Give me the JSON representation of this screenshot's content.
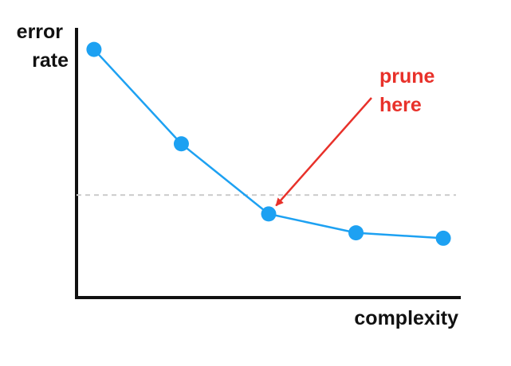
{
  "chart_data": {
    "type": "line",
    "title": "",
    "xlabel": "complexity",
    "ylabel_lines": [
      "error",
      "rate"
    ],
    "x": [
      1,
      2,
      3,
      4,
      5
    ],
    "series": [
      {
        "values": [
          0.92,
          0.57,
          0.31,
          0.24,
          0.22
        ]
      }
    ],
    "xlim": [
      0.8,
      5.2
    ],
    "ylim": [
      0,
      1
    ],
    "grid": false,
    "reference_line": {
      "y": 0.38,
      "style": "dashed",
      "color": "#cccccc"
    },
    "annotation": {
      "text_lines": [
        "prune",
        "here"
      ],
      "target_index": 2,
      "color": "#e8312a"
    },
    "colors": {
      "series": "#1da1f2",
      "axis": "#111111",
      "annotation": "#e8312a"
    }
  }
}
